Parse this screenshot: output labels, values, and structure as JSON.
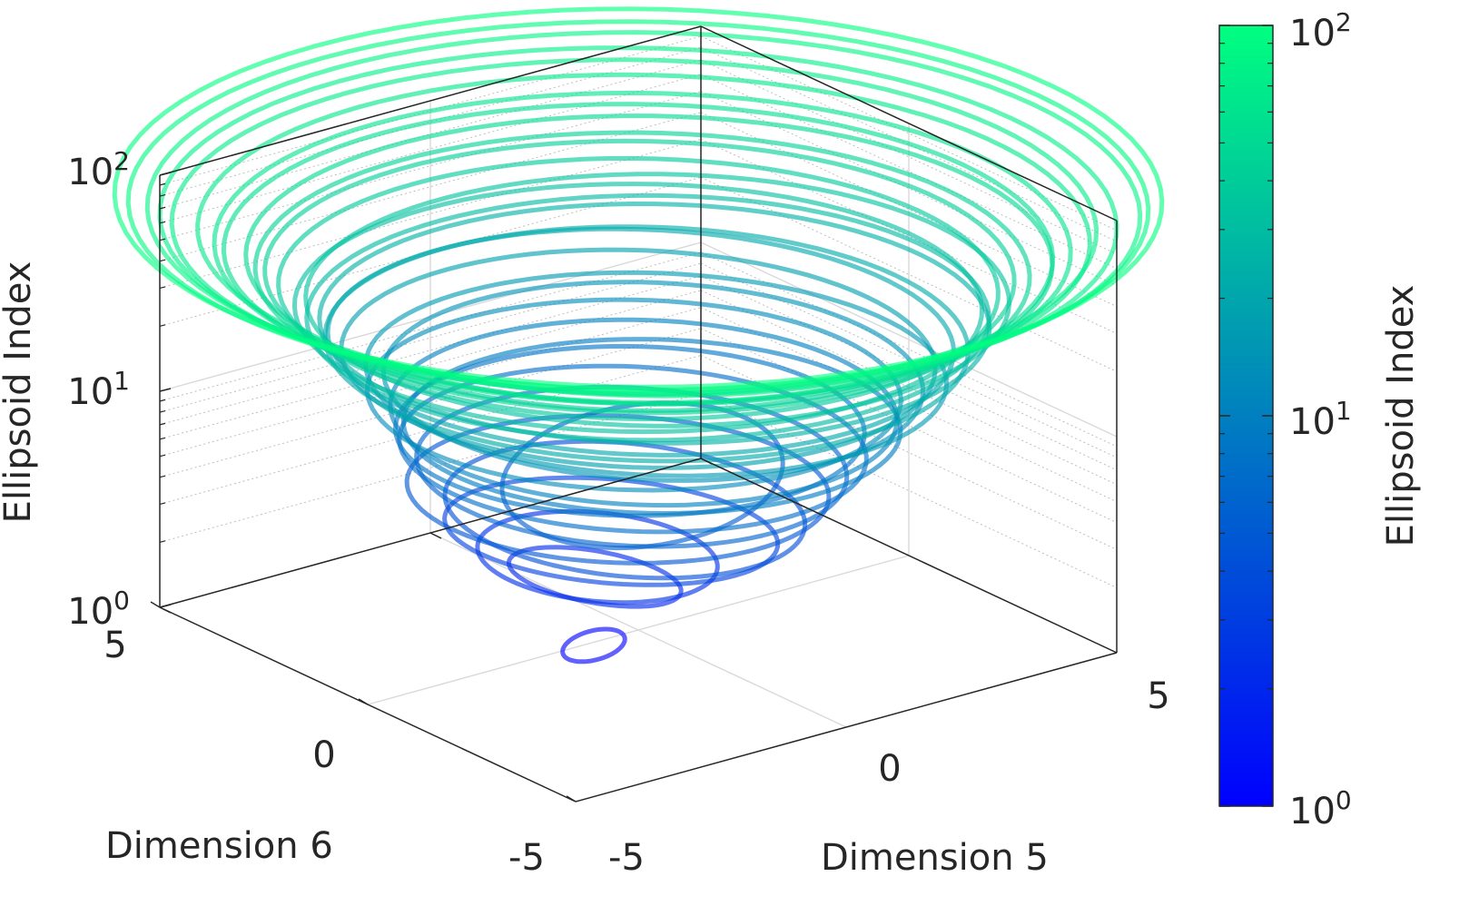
{
  "chart_data": {
    "type": "line3d",
    "xlabel": "Dimension 5",
    "ylabel": "Dimension 6",
    "zlabel": "Ellipsoid Index",
    "colorbar_label": "Ellipsoid Index",
    "x_ticks": [
      "-5",
      "0",
      "5"
    ],
    "y_ticks": [
      "-5",
      "0",
      "5"
    ],
    "z_ticks": [
      {
        "base": "10",
        "exp": "0"
      },
      {
        "base": "10",
        "exp": "1"
      },
      {
        "base": "10",
        "exp": "2"
      }
    ],
    "colorbar_ticks": [
      {
        "base": "10",
        "exp": "0"
      },
      {
        "base": "10",
        "exp": "1"
      },
      {
        "base": "10",
        "exp": "2"
      }
    ],
    "xlim": [
      -5,
      5
    ],
    "ylim": [
      -5,
      5
    ],
    "zlim": [
      1,
      100
    ],
    "z_scale": "log",
    "grid": true,
    "colormap": [
      "#0000ff",
      "#00ff80"
    ],
    "series": [
      {
        "z": 1.0,
        "cx": 0.1,
        "cy": -0.9,
        "rx": 0.4,
        "ry": 0.7,
        "angle": 30
      },
      {
        "z": 2.0,
        "cx": 0.0,
        "cy": -0.8,
        "rx": 1.5,
        "ry": 0.9,
        "angle": 10
      },
      {
        "z": 2.3,
        "cx": -0.2,
        "cy": -0.6,
        "rx": 2.0,
        "ry": 1.6,
        "angle": 0
      },
      {
        "z": 3.1,
        "cx": 0.0,
        "cy": -0.5,
        "rx": 2.6,
        "ry": 2.0,
        "angle": 20
      },
      {
        "z": 4.0,
        "cx": 0.2,
        "cy": -0.4,
        "rx": 3.0,
        "ry": 2.4,
        "angle": 0
      },
      {
        "z": 4.6,
        "cx": -0.1,
        "cy": -0.3,
        "rx": 3.2,
        "ry": 2.9,
        "angle": 15
      },
      {
        "z": 5.3,
        "cx": 0.1,
        "cy": 0.0,
        "rx": 2.0,
        "ry": 3.0,
        "angle": 40
      },
      {
        "z": 6.0,
        "cx": 0.1,
        "cy": -0.2,
        "rx": 3.4,
        "ry": 3.0,
        "angle": 0
      },
      {
        "z": 7.0,
        "cx": 0.0,
        "cy": -0.1,
        "rx": 3.6,
        "ry": 3.2,
        "angle": 10
      },
      {
        "z": 8.0,
        "cx": -0.2,
        "cy": 0.0,
        "rx": 3.5,
        "ry": 3.4,
        "angle": 0
      },
      {
        "z": 9.0,
        "cx": 0.2,
        "cy": 0.1,
        "rx": 3.7,
        "ry": 3.5,
        "angle": 20
      },
      {
        "z": 10.0,
        "cx": 0.0,
        "cy": 0.1,
        "rx": 3.9,
        "ry": 3.6,
        "angle": 0
      },
      {
        "z": 12.0,
        "cx": -0.1,
        "cy": 0.0,
        "rx": 4.0,
        "ry": 3.8,
        "angle": 10
      },
      {
        "z": 14.0,
        "cx": 0.1,
        "cy": 0.2,
        "rx": 4.2,
        "ry": 3.8,
        "angle": 0
      },
      {
        "z": 16.0,
        "cx": 0.3,
        "cy": 0.1,
        "rx": 4.4,
        "ry": 4.0,
        "angle": 15
      },
      {
        "z": 18.0,
        "cx": 0.0,
        "cy": 0.0,
        "rx": 4.6,
        "ry": 4.2,
        "angle": 0
      },
      {
        "z": 20.0,
        "cx": -0.2,
        "cy": 0.2,
        "rx": 4.8,
        "ry": 4.4,
        "angle": 5
      },
      {
        "z": 22.0,
        "cx": 0.2,
        "cy": 0.0,
        "rx": 4.9,
        "ry": 4.6,
        "angle": 0
      },
      {
        "z": 25.0,
        "cx": 0.0,
        "cy": 0.3,
        "rx": 5.0,
        "ry": 4.8,
        "angle": 10
      },
      {
        "z": 28.0,
        "cx": 0.1,
        "cy": 0.1,
        "rx": 5.0,
        "ry": 5.0,
        "angle": 0
      },
      {
        "z": 31.0,
        "cx": 0.0,
        "cy": 0.0,
        "rx": 5.1,
        "ry": 5.0,
        "angle": 0
      },
      {
        "z": 34.0,
        "cx": 0.2,
        "cy": 0.2,
        "rx": 5.2,
        "ry": 5.1,
        "angle": 10
      },
      {
        "z": 38.0,
        "cx": 0.0,
        "cy": 0.0,
        "rx": 5.4,
        "ry": 5.2,
        "angle": 0
      },
      {
        "z": 42.0,
        "cx": -0.1,
        "cy": 0.1,
        "rx": 5.6,
        "ry": 5.4,
        "angle": 5
      },
      {
        "z": 46.0,
        "cx": 0.1,
        "cy": 0.0,
        "rx": 5.8,
        "ry": 5.6,
        "angle": 0
      },
      {
        "z": 50.0,
        "cx": 0.0,
        "cy": 0.2,
        "rx": 6.0,
        "ry": 5.8,
        "angle": 10
      },
      {
        "z": 55.0,
        "cx": 0.0,
        "cy": 0.0,
        "rx": 6.2,
        "ry": 6.0,
        "angle": 0
      },
      {
        "z": 60.0,
        "cx": 0.1,
        "cy": 0.0,
        "rx": 6.4,
        "ry": 6.2,
        "angle": 0
      },
      {
        "z": 66.0,
        "cx": 0.0,
        "cy": 0.1,
        "rx": 6.7,
        "ry": 6.4,
        "angle": 5
      },
      {
        "z": 72.0,
        "cx": -0.1,
        "cy": 0.0,
        "rx": 6.9,
        "ry": 6.7,
        "angle": 0
      },
      {
        "z": 78.0,
        "cx": 0.0,
        "cy": 0.0,
        "rx": 7.2,
        "ry": 6.9,
        "angle": 0
      },
      {
        "z": 85.0,
        "cx": 0.0,
        "cy": 0.1,
        "rx": 7.4,
        "ry": 7.2,
        "angle": 0
      },
      {
        "z": 92.0,
        "cx": 0.0,
        "cy": 0.0,
        "rx": 7.6,
        "ry": 7.4,
        "angle": 0
      },
      {
        "z": 100.0,
        "cx": 0.0,
        "cy": 0.0,
        "rx": 7.8,
        "ry": 7.6,
        "angle": 0
      }
    ]
  }
}
